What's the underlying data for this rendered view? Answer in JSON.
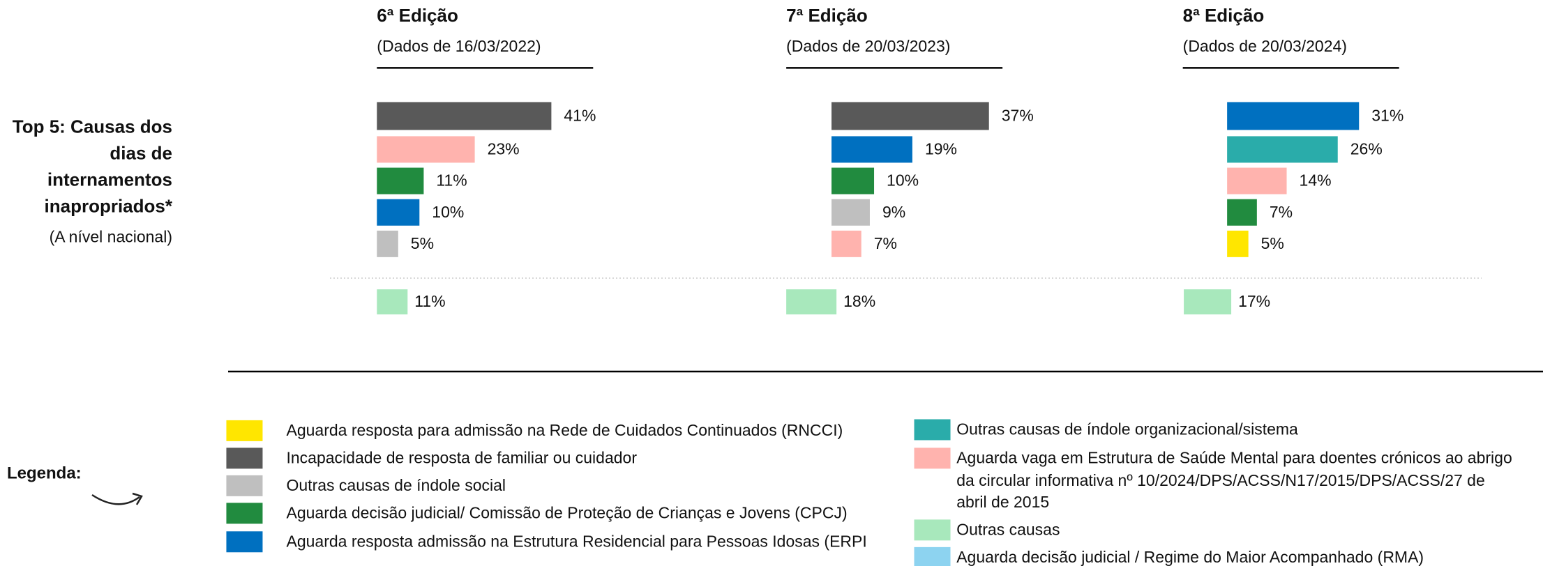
{
  "side": {
    "title_lines": [
      "Top 5: Causas dos",
      "dias de",
      "internamentos",
      "inapropriados*"
    ],
    "subtitle": "(A nível nacional)"
  },
  "legend_title": "Legenda:",
  "legend": [
    {
      "lines": [
        "Aguarda resposta para admissão na Rede de Cuidados Continuados (RNCCI)"
      ],
      "color": "#FFE600"
    },
    {
      "lines": [
        "Incapacidade de resposta de familiar ou cuidador"
      ],
      "color": "#595959"
    },
    {
      "lines": [
        "Outras causas de índole social"
      ],
      "color": "#BFBFBF"
    },
    {
      "lines": [
        "Aguarda decisão judicial/ Comissão de Proteção de Crianças e Jovens (CPCJ)"
      ],
      "color": "#218B3F"
    },
    {
      "lines": [
        "Aguarda resposta admissão na Estrutura Residencial para Pessoas Idosas (ERPI"
      ],
      "color": "#0070C0"
    },
    {
      "lines": [
        "Outras causas de índole organizacional/sistema"
      ],
      "color": "#2AACAA"
    },
    {
      "lines": [
        "Aguarda vaga em Estrutura de Saúde Mental para doentes crónicos ao abrigo",
        "da circular informativa nº 10/2024/DPS/ACSS/N17/2015/DPS/ACSS/27 de",
        "abril de 2015"
      ],
      "color": "#FFB3AE"
    },
    {
      "lines": [
        "Outras causas"
      ],
      "color": "#A8E8BC"
    },
    {
      "lines": [
        "Aguarda decisão judicial / Regime do Maior Acompanhado (RMA)"
      ],
      "color": "#8DD3F0"
    }
  ],
  "chart_data": [
    {
      "type": "bar",
      "title": "6ª Edição",
      "subtitle": "(Dados de 16/03/2022)",
      "values": [
        41,
        23,
        11,
        10,
        5
      ],
      "value_labels": [
        "41%",
        "23%",
        "11%",
        "10%",
        "5%"
      ],
      "colors": [
        "#595959",
        "#FFB3AE",
        "#218B3F",
        "#0070C0",
        "#BFBFBF"
      ],
      "other": {
        "value": 11,
        "label": "11%",
        "color": "#A8E8BC"
      }
    },
    {
      "type": "bar",
      "title": "7ª Edição",
      "subtitle": "(Dados de 20/03/2023)",
      "values": [
        37,
        19,
        10,
        9,
        7
      ],
      "value_labels": [
        "37%",
        "19%",
        "10%",
        "9%",
        "7%"
      ],
      "colors": [
        "#595959",
        "#0070C0",
        "#218B3F",
        "#BFBFBF",
        "#FFB3AE"
      ],
      "other": {
        "value": 18,
        "label": "18%",
        "color": "#A8E8BC"
      }
    },
    {
      "type": "bar",
      "title": "8ª Edição",
      "subtitle": "(Dados de 20/03/2024)",
      "values": [
        31,
        26,
        14,
        7,
        5
      ],
      "value_labels": [
        "31%",
        "26%",
        "14%",
        "7%",
        "5%"
      ],
      "colors": [
        "#0070C0",
        "#2AACAA",
        "#FFB3AE",
        "#218B3F",
        "#FFE600"
      ],
      "other": {
        "value": 17,
        "label": "17%",
        "color": "#A8E8BC"
      }
    }
  ]
}
